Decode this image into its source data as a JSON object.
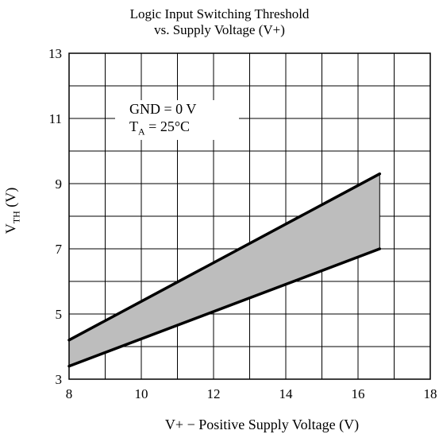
{
  "chart_data": {
    "type": "area",
    "title": "Logic Input Switching Threshold",
    "subtitle": "vs. Supply Voltage (V+)",
    "xlabel": "V+ − Positive Supply Voltage (V)",
    "ylabel": {
      "main": "V",
      "sub": "TH",
      "rest": " (V)"
    },
    "xlim": [
      8,
      18
    ],
    "ylim": [
      3,
      13
    ],
    "x_ticks": [
      8,
      10,
      12,
      14,
      16,
      18
    ],
    "y_ticks": [
      3,
      5,
      7,
      9,
      11,
      13
    ],
    "grid": true,
    "series": [
      {
        "x": [
          8,
          16.6
        ],
        "y": [
          4.2,
          9.3
        ]
      },
      {
        "x": [
          8,
          16.6
        ],
        "y": [
          3.4,
          7.0
        ]
      }
    ],
    "fill_color": "#bdbdbd",
    "annotation": {
      "line1": "GND = 0 V",
      "line2_main": "T",
      "line2_sub": "A",
      "line2_rest": " = 25°C"
    }
  }
}
